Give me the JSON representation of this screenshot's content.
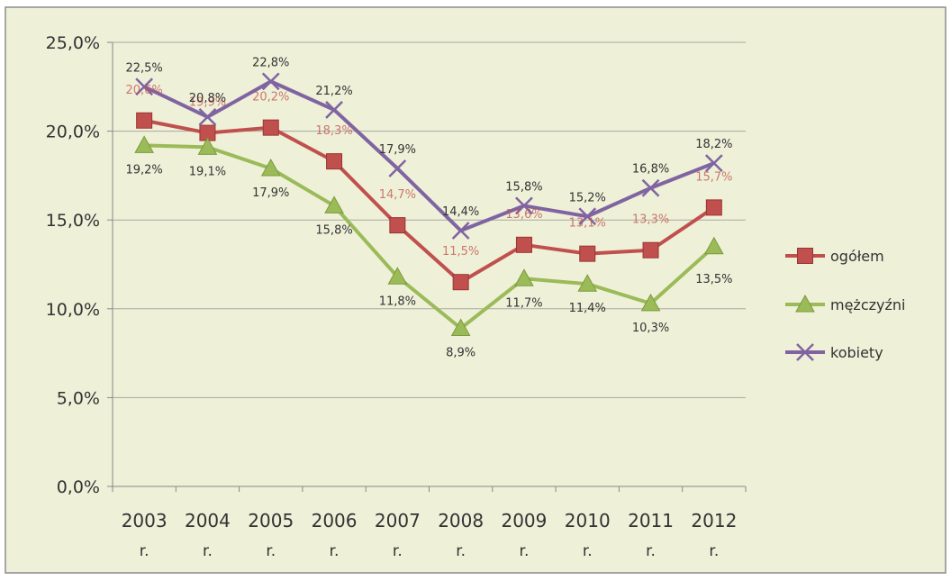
{
  "chart_data": {
    "type": "line",
    "title": "",
    "xlabel": "",
    "ylabel": "",
    "ylim": [
      0,
      25
    ],
    "y_ticks": [
      "0,0%",
      "5,0%",
      "10,0%",
      "15,0%",
      "20,0%",
      "25,0%"
    ],
    "categories": [
      "2003",
      "2004",
      "2005",
      "2006",
      "2007",
      "2008",
      "2009",
      "2010",
      "2011",
      "2012"
    ],
    "category_suffix": "r.",
    "grid": true,
    "legend_position": "right",
    "background": "#eef0d8",
    "series": [
      {
        "name": "ogółem",
        "color": "#c0504d",
        "marker": "square",
        "values": [
          20.6,
          19.9,
          20.2,
          18.3,
          14.7,
          11.5,
          13.6,
          13.1,
          13.3,
          15.7
        ],
        "labels": [
          "20,6%",
          "19,9%",
          "20,2%",
          "18,3%",
          "14,7%",
          "11,5%",
          "13,6%",
          "13,1%",
          "13,3%",
          "15,7%"
        ]
      },
      {
        "name": "mężczyźni",
        "color": "#9bbb59",
        "marker": "triangle",
        "values": [
          19.2,
          19.1,
          17.9,
          15.8,
          11.8,
          8.9,
          11.7,
          11.4,
          10.3,
          13.5
        ],
        "labels": [
          "19,2%",
          "19,1%",
          "17,9%",
          "15,8%",
          "11,8%",
          "8,9%",
          "11,7%",
          "11,4%",
          "10,3%",
          "13,5%"
        ]
      },
      {
        "name": "kobiety",
        "color": "#8064a2",
        "marker": "x",
        "values": [
          22.5,
          20.8,
          22.8,
          21.2,
          17.9,
          14.4,
          15.8,
          15.2,
          16.8,
          18.2
        ],
        "labels": [
          "22,5%",
          "20,8%",
          "22,8%",
          "21,2%",
          "17,9%",
          "14,4%",
          "15,8%",
          "15,2%",
          "16,8%",
          "18,2%"
        ]
      }
    ]
  }
}
